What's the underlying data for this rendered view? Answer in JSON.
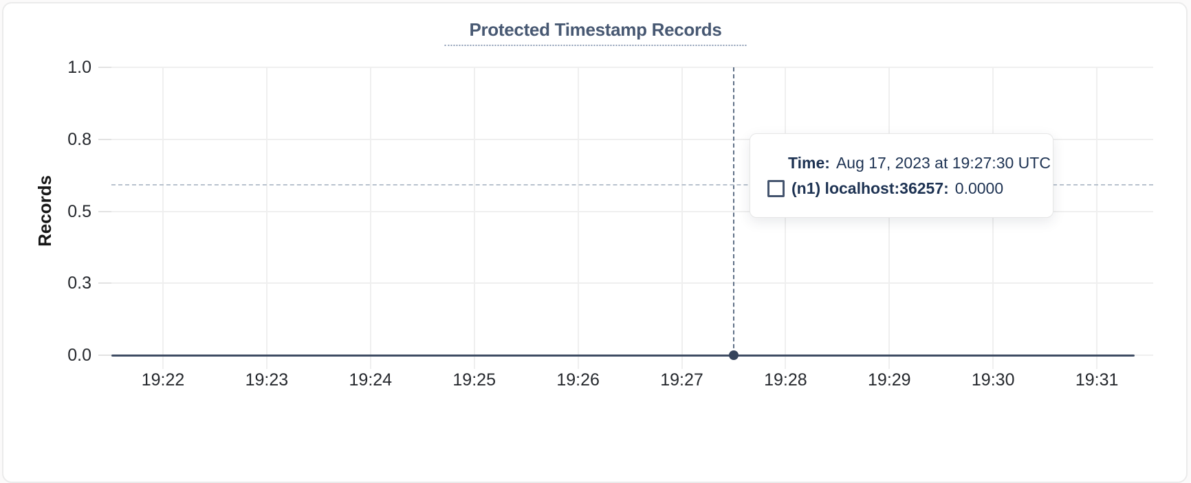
{
  "page": {
    "background": "#fbfafa",
    "card_background": "#ffffff"
  },
  "chart": {
    "title": "Protected Timestamp Records",
    "ylabel": "Records"
  },
  "tooltip": {
    "time_label": "Time:",
    "time_value": "Aug 17, 2023 at 19:27:30 UTC",
    "series_label": "(n1) localhost:36257:",
    "series_value": "0.0000"
  },
  "colors": {
    "title": "#475872",
    "series_line": "#3e4c63",
    "crosshair_vertical": "#5d6e85",
    "crosshair_horizontal": "#b7c1cd",
    "gridline": "#efefef",
    "tooltip_text": "#1d3252"
  },
  "chart_data": {
    "type": "line",
    "title": "Protected Timestamp Records",
    "xlabel": "",
    "ylabel": "Records",
    "ylim": [
      0,
      1
    ],
    "grid": true,
    "x_ticks": [
      "19:22",
      "19:23",
      "19:24",
      "19:25",
      "19:26",
      "19:27",
      "19:28",
      "19:29",
      "19:30",
      "19:31"
    ],
    "y_ticks": [
      "1.0",
      "0.8",
      "0.5",
      "0.3",
      "0.0"
    ],
    "y_tick_values": [
      1.0,
      0.75,
      0.5,
      0.25,
      0.0
    ],
    "x_range": [
      "19:21:30",
      "19:31:30"
    ],
    "series": [
      {
        "name": "(n1) localhost:36257",
        "color": "#3e4c63",
        "x": [
          "19:22",
          "19:23",
          "19:24",
          "19:25",
          "19:26",
          "19:27",
          "19:28",
          "19:29",
          "19:30",
          "19:31"
        ],
        "values": [
          0,
          0,
          0,
          0,
          0,
          0,
          0,
          0,
          0,
          0
        ]
      }
    ],
    "hover_point": {
      "x": "19:27:30",
      "time": "Aug 17, 2023 at 19:27:30 UTC",
      "series": "(n1) localhost:36257",
      "value": 0.0,
      "value_label": "0.0000"
    },
    "legend_position": "tooltip-only"
  }
}
